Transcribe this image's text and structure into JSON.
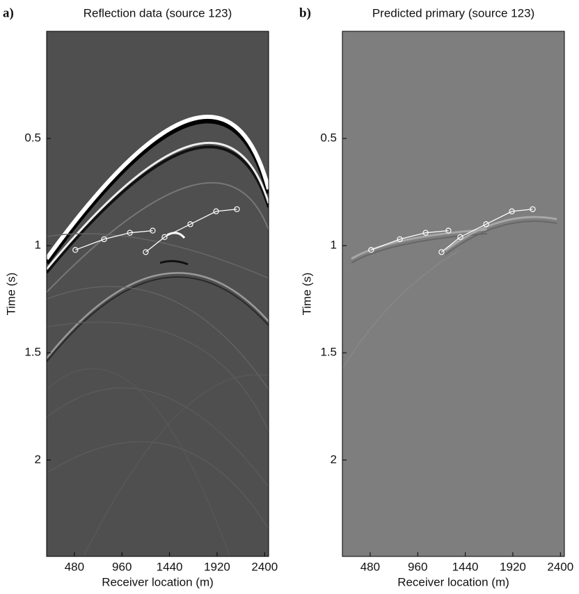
{
  "chart_data": [
    {
      "type": "image",
      "panel_label": "a)",
      "title": "Reflection data (source 123)",
      "xlabel": "Receiver location (m)",
      "ylabel": "Time (s)",
      "image_color": "#4f4f4f",
      "pick_color": "#ffffff",
      "xlim": [
        200,
        2440
      ],
      "ylim": [
        0,
        2.45
      ],
      "xticks": [
        480,
        960,
        1440,
        1920,
        2400
      ],
      "yticks": [
        0.5,
        1,
        1.5,
        2
      ],
      "picks": [
        {
          "x": [
            490,
            780,
            1040,
            1270
          ],
          "y": [
            1.02,
            0.97,
            0.94,
            0.93
          ]
        },
        {
          "x": [
            1200,
            1390,
            1650,
            1910,
            2120
          ],
          "y": [
            1.03,
            0.96,
            0.9,
            0.84,
            0.83
          ]
        }
      ]
    },
    {
      "type": "image",
      "panel_label": "b)",
      "title": "Predicted primary (source 123)",
      "xlabel": "Receiver location (m)",
      "ylabel": "Time (s)",
      "image_color": "#7e7e7e",
      "pick_color": "#ffffff",
      "xlim": [
        200,
        2440
      ],
      "ylim": [
        0,
        2.45
      ],
      "xticks": [
        480,
        960,
        1440,
        1920,
        2400
      ],
      "yticks": [
        0.5,
        1,
        1.5,
        2
      ],
      "picks": [
        {
          "x": [
            490,
            780,
            1040,
            1270
          ],
          "y": [
            1.02,
            0.97,
            0.94,
            0.93
          ]
        },
        {
          "x": [
            1200,
            1390,
            1650,
            1910,
            2120
          ],
          "y": [
            1.03,
            0.96,
            0.9,
            0.84,
            0.83
          ]
        }
      ]
    }
  ]
}
